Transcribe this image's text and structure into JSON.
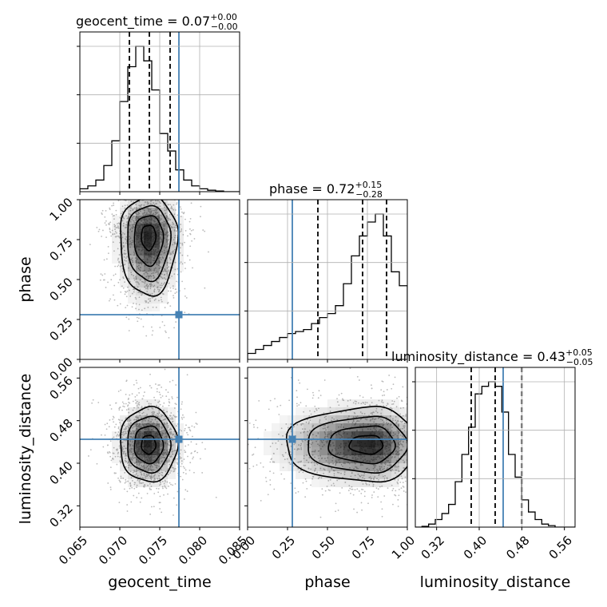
{
  "chart_data": {
    "type": "corner",
    "parameters": [
      "geocent_time",
      "phase",
      "luminosity_distance"
    ],
    "truth_values": [
      0.0774,
      0.28,
      0.445
    ],
    "ranges": [
      [
        0.065,
        0.085
      ],
      [
        0.0,
        1.0
      ],
      [
        0.28,
        0.58
      ]
    ],
    "ticks": {
      "geocent_time": [
        "0.065",
        "0.070",
        "0.075",
        "0.080",
        "0.085"
      ],
      "geocent_time_values": [
        0.065,
        0.07,
        0.075,
        0.08,
        0.085
      ],
      "phase_x": [
        "0.00",
        "0.25",
        "0.50",
        "0.75",
        "1.00"
      ],
      "phase_y": [
        "0.00",
        "0.25",
        "0.50",
        "0.75",
        "1.00"
      ],
      "phase_values": [
        0.0,
        0.25,
        0.5,
        0.75,
        1.0
      ],
      "luminosity_distance": [
        "0.32",
        "0.40",
        "0.48",
        "0.56"
      ],
      "luminosity_distance_values": [
        0.32,
        0.4,
        0.48,
        0.56
      ]
    },
    "titles": [
      {
        "text": "geocent_time = 0.07",
        "sup": "+0.00",
        "sub": "−0.00"
      },
      {
        "text": "phase = 0.72",
        "sup": "+0.15",
        "sub": "−0.28"
      },
      {
        "text": "luminosity_distance = 0.43",
        "sup": "+0.05",
        "sub": "−0.05"
      }
    ],
    "quantiles": {
      "geocent_time": [
        0.0712,
        0.0737,
        0.0763
      ],
      "phase": [
        0.44,
        0.72,
        0.87
      ],
      "luminosity_distance": [
        0.385,
        0.43,
        0.48
      ]
    },
    "histograms": {
      "geocent_time": {
        "edges_start": 0.065,
        "bin_width": 0.001,
        "counts": [
          2,
          4,
          8,
          18,
          35,
          62,
          86,
          100,
          90,
          70,
          40,
          28,
          15,
          8,
          4,
          2,
          1,
          0.5,
          0,
          0
        ]
      },
      "phase": {
        "edges_start": 0.0,
        "bin_width": 0.05,
        "counts": [
          3,
          5,
          7,
          9,
          11,
          13,
          14,
          15,
          18,
          21,
          23,
          27,
          38,
          52,
          62,
          69,
          73,
          62,
          44,
          37
        ]
      },
      "luminosity_distance": {
        "edges_start": 0.28,
        "bin_width": 0.0125,
        "counts": [
          0,
          0.5,
          2,
          5,
          9,
          15,
          30,
          48,
          66,
          88,
          93,
          96,
          93,
          76,
          48,
          33,
          18,
          10,
          5,
          2,
          1,
          0,
          0,
          0
        ]
      }
    },
    "posterior_2d": {
      "phase_vs_geocent_time": {
        "peak": [
          0.0736,
          0.78
        ],
        "sigma": [
          0.0018,
          0.12
        ]
      },
      "luminosity_distance_vs_geocent_time": {
        "peak": [
          0.0736,
          0.435
        ],
        "sigma": [
          0.0018,
          0.035
        ]
      },
      "luminosity_distance_vs_phase": {
        "peak": [
          0.77,
          0.435
        ],
        "sigma": [
          0.15,
          0.035
        ]
      }
    },
    "colors": {
      "histogram": "#000000",
      "quantile_lines": "#000000",
      "truth": "#4682b4",
      "density": "#000000",
      "grid": "#b0b0b0"
    },
    "grid": true
  }
}
